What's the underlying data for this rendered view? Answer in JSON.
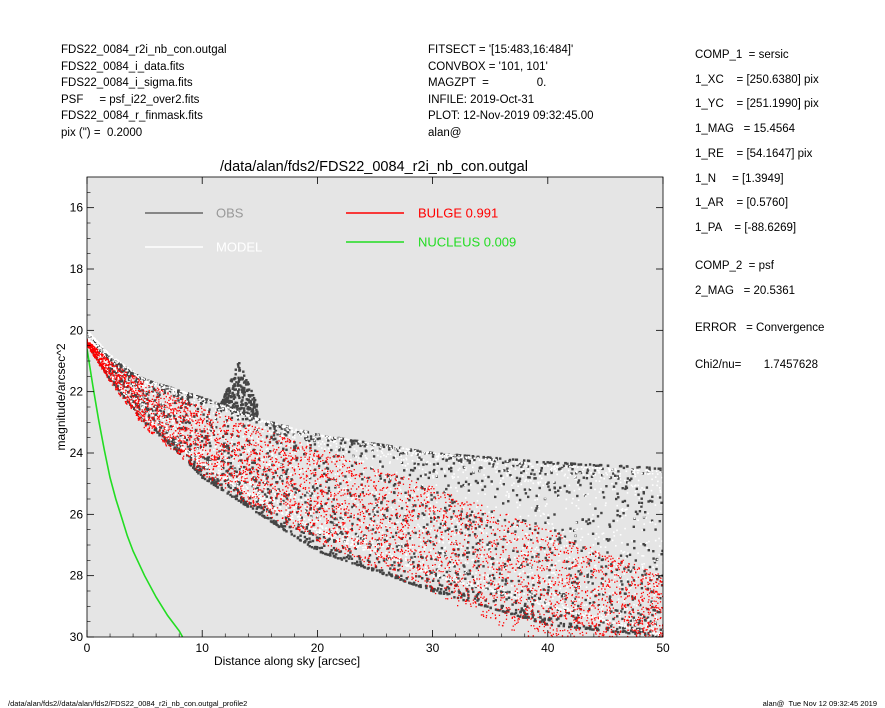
{
  "header_left": [
    "FDS22_0084_r2i_nb_con.outgal",
    "FDS22_0084_i_data.fits",
    "FDS22_0084_i_sigma.fits",
    "PSF     = psf_i22_over2.fits",
    "FDS22_0084_r_finmask.fits",
    "pix (\") =  0.2000"
  ],
  "header_middle": [
    "FITSECT = '[15:483,16:484]'",
    "CONVBOX = '101, 101'",
    "MAGZPT  =               0.",
    "INFILE: 2019-Oct-31",
    "PLOT: 12-Nov-2019 09:32:45.00",
    "alan@"
  ],
  "header_right": [
    "COMP_1  = sersic",
    "1_XC    = [250.6380] pix",
    "1_YC    = [251.1990] pix",
    "1_MAG   = 15.4564",
    "1_RE    = [54.1647] pix",
    "1_N     = [1.3949]",
    "1_AR    = [0.5760]",
    "1_PA    = [-88.6269]",
    "COMP_2  = psf",
    "2_MAG   = 20.5361",
    "ERROR   = Convergence",
    "Chi2/nu=       1.7457628"
  ],
  "footer": {
    "left": "/data/alan/fds2//data/alan/fds2/FDS22_0084_r2i_nb_con.outgal_profile2",
    "right": "alan@  Tue Nov 12 09:32:45 2019"
  },
  "colors": {
    "plot_bg": "#e5e5e5",
    "obs": "#444444",
    "model": "#ffffff",
    "bulge": "#ff0000",
    "nucleus": "#22dd22",
    "legend_obs_text": "#999999"
  },
  "chart_data": {
    "type": "scatter",
    "title": "/data/alan/fds2/FDS22_0084_r2i_nb_con.outgal",
    "xlabel": "Distance along sky [arcsec]",
    "ylabel": "magnitude/arcsec^2",
    "xlim": [
      0,
      50
    ],
    "ylim": [
      30,
      15
    ],
    "y_inverted": true,
    "x_ticks": [
      0,
      10,
      20,
      30,
      40,
      50
    ],
    "y_ticks": [
      16,
      18,
      20,
      22,
      24,
      26,
      28,
      30
    ],
    "grid": false,
    "legend": [
      {
        "label": "OBS",
        "color": "#999999",
        "line_color": "#666666",
        "position": "top-left"
      },
      {
        "label": "MODEL",
        "color": "#ffffff",
        "line_color": "#ffffff",
        "position": "top-left"
      },
      {
        "label": "BULGE  0.991",
        "color": "#ff0000",
        "line_color": "#ff0000",
        "position": "top-center"
      },
      {
        "label": "NUCLEUS  0.009",
        "color": "#22dd22",
        "line_color": "#22dd22",
        "position": "top-center"
      }
    ],
    "series": [
      {
        "name": "OBS",
        "kind": "points",
        "envelope_bright": [
          [
            0,
            20.1
          ],
          [
            2,
            20.9
          ],
          [
            5,
            21.6
          ],
          [
            10,
            22.2
          ],
          [
            15,
            22.9
          ],
          [
            20,
            23.4
          ],
          [
            30,
            24.0
          ],
          [
            40,
            24.3
          ],
          [
            50,
            24.5
          ]
        ],
        "envelope_faint": [
          [
            0,
            20.4
          ],
          [
            2,
            21.6
          ],
          [
            5,
            23.0
          ],
          [
            8,
            24.0
          ],
          [
            10,
            24.8
          ],
          [
            15,
            26.0
          ],
          [
            20,
            27.2
          ],
          [
            30,
            28.5
          ],
          [
            40,
            29.6
          ],
          [
            50,
            30.0
          ]
        ],
        "peak": {
          "x": 13.2,
          "y": 21.0
        }
      },
      {
        "name": "MODEL",
        "kind": "points",
        "envelope_bright": [
          [
            0,
            20.0
          ],
          [
            2,
            20.8
          ],
          [
            5,
            21.6
          ],
          [
            10,
            22.2
          ],
          [
            15,
            22.9
          ],
          [
            20,
            23.4
          ],
          [
            30,
            24.0
          ],
          [
            40,
            24.4
          ],
          [
            50,
            24.6
          ]
        ],
        "envelope_faint": [
          [
            0,
            20.3
          ],
          [
            2,
            21.5
          ],
          [
            5,
            22.9
          ],
          [
            10,
            24.4
          ],
          [
            15,
            25.6
          ],
          [
            20,
            26.6
          ],
          [
            30,
            28.0
          ],
          [
            40,
            29.0
          ],
          [
            50,
            30.0
          ]
        ]
      },
      {
        "name": "BULGE",
        "kind": "points",
        "envelope_bright": [
          [
            0,
            20.3
          ],
          [
            2,
            21.0
          ],
          [
            5,
            21.7
          ],
          [
            10,
            22.5
          ],
          [
            15,
            23.2
          ],
          [
            20,
            23.8
          ],
          [
            30,
            25.1
          ],
          [
            40,
            26.5
          ],
          [
            50,
            28.0
          ]
        ],
        "envelope_faint": [
          [
            0,
            20.5
          ],
          [
            2,
            21.7
          ],
          [
            5,
            23.2
          ],
          [
            10,
            24.7
          ],
          [
            15,
            25.9
          ],
          [
            20,
            26.9
          ],
          [
            30,
            28.6
          ],
          [
            38,
            30.0
          ]
        ]
      },
      {
        "name": "NUCLEUS",
        "kind": "line",
        "x": [
          0,
          0.5,
          1,
          1.5,
          2,
          2.5,
          3,
          3.5,
          4,
          5,
          6,
          7,
          8,
          8.3
        ],
        "y": [
          20.6,
          21.8,
          22.9,
          23.9,
          24.8,
          25.5,
          26.1,
          26.7,
          27.2,
          28.0,
          28.7,
          29.3,
          29.8,
          30.0
        ]
      }
    ]
  }
}
